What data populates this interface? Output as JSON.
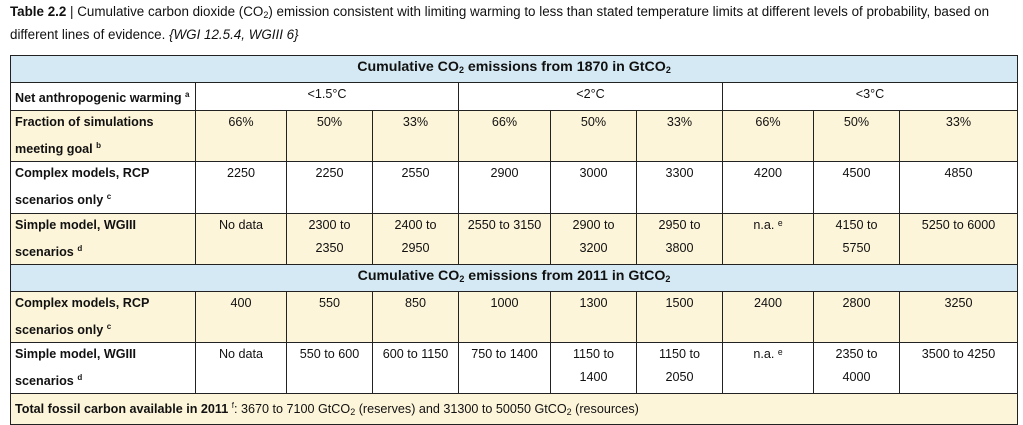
{
  "caption": {
    "label": "Table 2.2",
    "sep": " | ",
    "text_a": "Cumulative carbon dioxide (CO",
    "sub": "2",
    "text_b": ") emission consistent with limiting warming to less than stated temperature limits at different levels of probability, based on different lines of evidence. ",
    "ref": "{WGI 12.5.4, WGIII 6}"
  },
  "table": {
    "section1": {
      "pre": "Cumulative CO",
      "sub": "2",
      "post": " emissions from 1870 in GtCO",
      "sub2": "2"
    },
    "section2": {
      "pre": "Cumulative CO",
      "sub": "2",
      "post": " emissions from 2011 in GtCO",
      "sub2": "2"
    },
    "warming_row": {
      "label": "Net anthropogenic warming",
      "note": "a",
      "groups": [
        "<1.5°C",
        "<2°C",
        "<3°C"
      ]
    },
    "fraction_row": {
      "label_1": "Fraction of simulations",
      "label_2": "meeting goal",
      "note": "b",
      "values": [
        "66%",
        "50%",
        "33%",
        "66%",
        "50%",
        "33%",
        "66%",
        "50%",
        "33%"
      ]
    },
    "s1_complex": {
      "label_1": "Complex models, RCP",
      "label_2": "scenarios only",
      "note": "c",
      "values": [
        "2250",
        "2250",
        "2550",
        "2900",
        "3000",
        "3300",
        "4200",
        "4500",
        "4850"
      ]
    },
    "s1_simple": {
      "label_1": "Simple model, WGIII",
      "label_2": "scenarios",
      "note": "d",
      "values": [
        [
          "No data",
          ""
        ],
        [
          "2300 to",
          "2350"
        ],
        [
          "2400 to",
          "2950"
        ],
        [
          "2550 to 3150",
          ""
        ],
        [
          "2900 to",
          "3200"
        ],
        [
          "2950 to",
          "3800"
        ],
        [
          "n.a. ᵉ",
          ""
        ],
        [
          "4150 to",
          "5750"
        ],
        [
          "5250 to 6000",
          ""
        ]
      ]
    },
    "s2_complex": {
      "label_1": "Complex models, RCP",
      "label_2": "scenarios only",
      "note": "c",
      "values": [
        "400",
        "550",
        "850",
        "1000",
        "1300",
        "1500",
        "2400",
        "2800",
        "3250"
      ]
    },
    "s2_simple": {
      "label_1": "Simple model, WGIII",
      "label_2": "scenarios",
      "note": "d",
      "values": [
        [
          "No data",
          ""
        ],
        [
          "550 to 600",
          ""
        ],
        [
          "600 to 1150",
          ""
        ],
        [
          "750 to 1400",
          ""
        ],
        [
          "1150 to",
          "1400"
        ],
        [
          "1150 to",
          "2050"
        ],
        [
          "n.a. ᵉ",
          ""
        ],
        [
          "2350 to",
          "4000"
        ],
        [
          "3500 to 4250",
          ""
        ]
      ]
    },
    "footer": {
      "bold": "Total fossil carbon available in 2011",
      "note": "f",
      "text_a": ": 3670 to 7100 GtCO",
      "sub": "2",
      "text_b": " (reserves) and 31300 to 50050 GtCO",
      "sub2": "2",
      "text_c": " (resources)"
    }
  }
}
